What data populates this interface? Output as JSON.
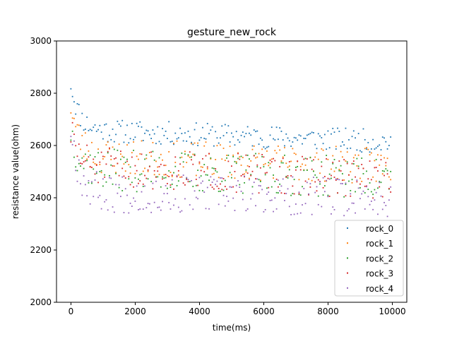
{
  "chart_data": {
    "type": "scatter",
    "title": "gesture_new_rock",
    "xlabel": "time(ms)",
    "ylabel": "resistance value(ohm)",
    "xlim": [
      -450,
      10450
    ],
    "ylim": [
      2000,
      3000
    ],
    "xticks": [
      0,
      2000,
      4000,
      6000,
      8000,
      10000
    ],
    "yticks": [
      2000,
      2200,
      2400,
      2600,
      2800,
      3000
    ],
    "legend_position": "lower-right",
    "series": [
      {
        "name": "rock_0",
        "color": "#1f77b4",
        "base": 2660,
        "end": 2615,
        "spread": 45,
        "start_boost": 180,
        "seed": 11
      },
      {
        "name": "rock_1",
        "color": "#ff7f0e",
        "base": 2560,
        "end": 2520,
        "spread": 70,
        "start_boost": 200,
        "seed": 23
      },
      {
        "name": "rock_2",
        "color": "#2ca02c",
        "base": 2510,
        "end": 2475,
        "spread": 80,
        "start_boost": 150,
        "seed": 37
      },
      {
        "name": "rock_3",
        "color": "#d62728",
        "base": 2520,
        "end": 2470,
        "spread": 75,
        "start_boost": 130,
        "seed": 51
      },
      {
        "name": "rock_4",
        "color": "#9467bd",
        "base": 2420,
        "end": 2400,
        "spread": 75,
        "start_boost": 250,
        "seed": 67
      }
    ],
    "n_points": 200,
    "x_max": 9950
  }
}
